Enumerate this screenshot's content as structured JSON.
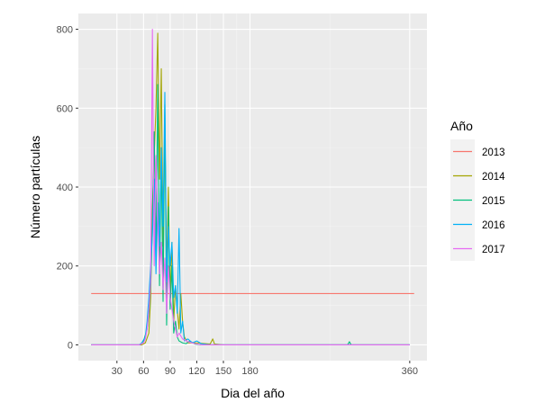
{
  "chart_data": {
    "type": "line",
    "xlabel": "Dia del año",
    "ylabel": "Número partículas",
    "xlim": [
      1,
      365
    ],
    "ylim": [
      0,
      800
    ],
    "x_ticks": [
      30,
      60,
      90,
      120,
      150,
      180,
      360
    ],
    "y_ticks": [
      0,
      200,
      400,
      600,
      800
    ],
    "grid": true,
    "legend_position": "right",
    "legend": {
      "title": "Año",
      "entries": [
        "2013",
        "2014",
        "2015",
        "2016",
        "2017"
      ]
    },
    "series": [
      {
        "name": "2013",
        "color": "#F8766D",
        "x": [
          1,
          365
        ],
        "y": [
          130,
          130
        ]
      },
      {
        "name": "2014",
        "color": "#A3A500",
        "x": [
          1,
          58,
          62,
          66,
          68,
          70,
          72,
          74,
          76,
          78,
          80,
          82,
          84,
          86,
          88,
          90,
          92,
          94,
          96,
          98,
          100,
          102,
          104,
          106,
          110,
          120,
          135,
          138,
          140,
          150,
          200,
          250,
          300,
          360
        ],
        "y": [
          0,
          0,
          5,
          30,
          120,
          350,
          480,
          600,
          790,
          420,
          700,
          250,
          560,
          180,
          400,
          120,
          260,
          60,
          150,
          90,
          40,
          130,
          60,
          20,
          5,
          5,
          2,
          15,
          2,
          0,
          0,
          0,
          0,
          0
        ]
      },
      {
        "name": "2015",
        "color": "#00BF7D",
        "x": [
          1,
          56,
          60,
          64,
          66,
          68,
          70,
          72,
          74,
          76,
          78,
          80,
          82,
          84,
          86,
          88,
          90,
          92,
          94,
          96,
          98,
          100,
          104,
          108,
          112,
          118,
          125,
          135,
          150,
          200,
          250,
          290,
          292,
          294,
          300,
          360
        ],
        "y": [
          0,
          0,
          10,
          40,
          80,
          150,
          300,
          540,
          220,
          660,
          150,
          480,
          110,
          610,
          50,
          350,
          90,
          200,
          30,
          60,
          20,
          10,
          5,
          3,
          10,
          2,
          0,
          0,
          0,
          0,
          0,
          0,
          8,
          0,
          0,
          0
        ]
      },
      {
        "name": "2016",
        "color": "#00B0F6",
        "x": [
          1,
          55,
          58,
          62,
          64,
          66,
          68,
          70,
          72,
          74,
          76,
          78,
          80,
          82,
          84,
          86,
          88,
          90,
          92,
          94,
          96,
          98,
          100,
          102,
          104,
          106,
          110,
          115,
          120,
          125,
          135,
          150,
          200,
          250,
          300,
          360
        ],
        "y": [
          0,
          0,
          5,
          20,
          60,
          120,
          200,
          280,
          420,
          180,
          360,
          250,
          500,
          300,
          640,
          160,
          300,
          200,
          260,
          120,
          150,
          80,
          295,
          30,
          60,
          10,
          15,
          5,
          10,
          3,
          0,
          0,
          0,
          0,
          0,
          0
        ]
      },
      {
        "name": "2017",
        "color": "#E76BF3",
        "x": [
          1,
          55,
          60,
          62,
          64,
          66,
          68,
          70,
          72,
          74,
          76,
          78,
          80,
          82,
          84,
          86,
          88,
          90,
          92,
          94,
          96,
          98,
          100,
          104,
          110,
          118,
          125,
          150,
          200,
          250,
          300,
          360
        ],
        "y": [
          0,
          0,
          5,
          15,
          40,
          90,
          160,
          800,
          200,
          480,
          320,
          180,
          260,
          140,
          220,
          80,
          200,
          120,
          90,
          60,
          40,
          20,
          30,
          15,
          8,
          3,
          0,
          0,
          0,
          0,
          0,
          0
        ]
      }
    ]
  }
}
